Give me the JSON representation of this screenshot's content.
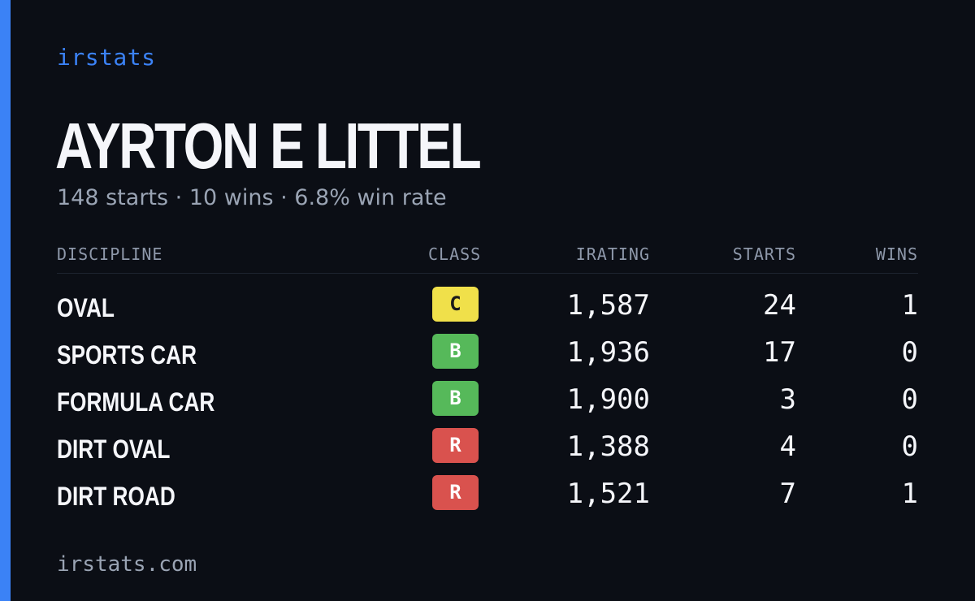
{
  "brand": "irstats",
  "driver": {
    "name": "AYRTON E LITTEL",
    "summary": "148 starts · 10 wins · 6.8% win rate"
  },
  "table": {
    "headers": {
      "discipline": "DISCIPLINE",
      "class": "CLASS",
      "irating": "IRATING",
      "starts": "STARTS",
      "wins": "WINS"
    },
    "rows": [
      {
        "discipline": "OVAL",
        "class": "C",
        "class_color": "#f0e04a",
        "class_text_color": "#1a1a1a",
        "irating": "1,587",
        "starts": "24",
        "wins": "1"
      },
      {
        "discipline": "SPORTS CAR",
        "class": "B",
        "class_color": "#56b95a",
        "class_text_color": "#ffffff",
        "irating": "1,936",
        "starts": "17",
        "wins": "0"
      },
      {
        "discipline": "FORMULA CAR",
        "class": "B",
        "class_color": "#56b95a",
        "class_text_color": "#ffffff",
        "irating": "1,900",
        "starts": "3",
        "wins": "0"
      },
      {
        "discipline": "DIRT OVAL",
        "class": "R",
        "class_color": "#d9524e",
        "class_text_color": "#ffffff",
        "irating": "1,388",
        "starts": "4",
        "wins": "0"
      },
      {
        "discipline": "DIRT ROAD",
        "class": "R",
        "class_color": "#d9524e",
        "class_text_color": "#ffffff",
        "irating": "1,521",
        "starts": "7",
        "wins": "1"
      }
    ]
  },
  "footer": "irstats.com",
  "colors": {
    "accent": "#3b82f6",
    "background": "#0b0e15",
    "muted_text": "#9aa4b4"
  }
}
